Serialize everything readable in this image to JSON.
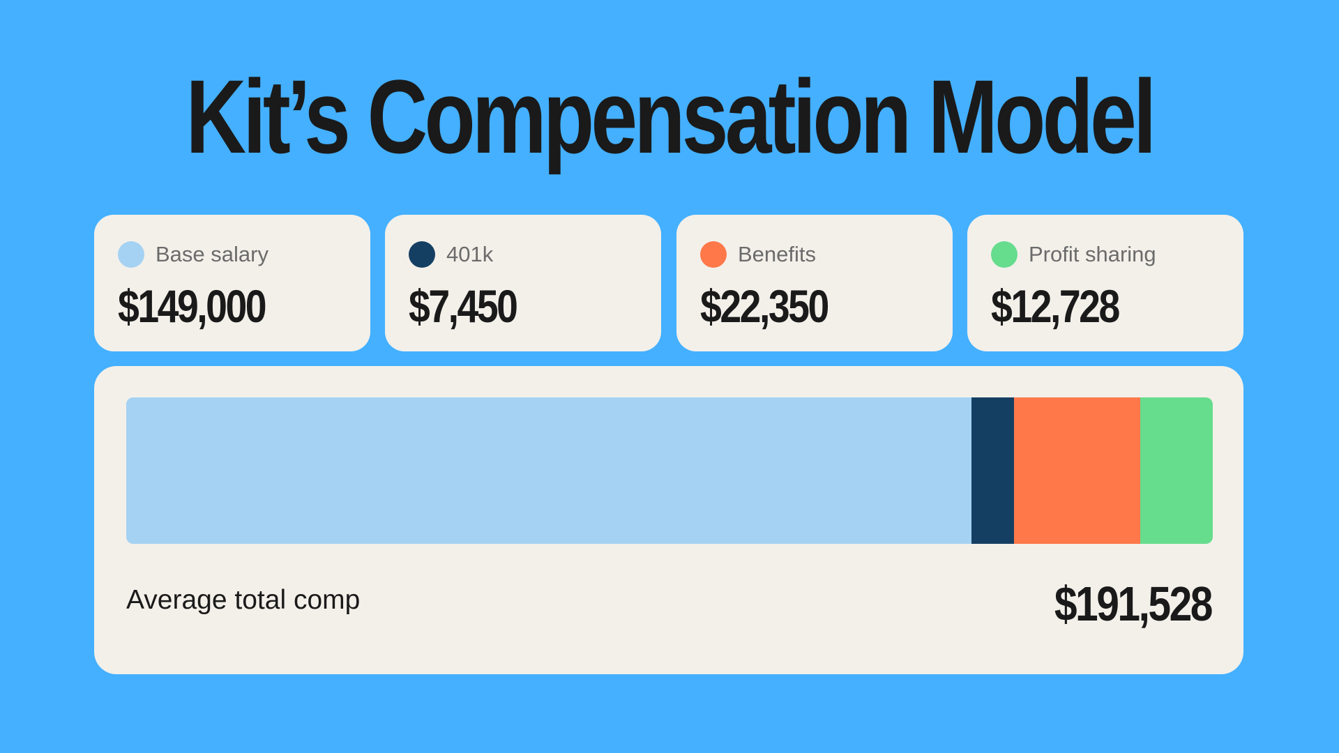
{
  "title": "Kit’s Compensation Model",
  "colors": {
    "background": "#44B0FF",
    "card": "#F3F0EA",
    "base_salary": "#A5D2F3",
    "401k": "#153F62",
    "benefits": "#FF7849",
    "profit_sharing": "#66DC8D"
  },
  "cards": [
    {
      "label": "Base salary",
      "value": "$149,000"
    },
    {
      "label": "401k",
      "value": "$7,450"
    },
    {
      "label": "Benefits",
      "value": "$22,350"
    },
    {
      "label": "Profit sharing",
      "value": "$12,728"
    }
  ],
  "total": {
    "label": "Average total comp",
    "value": "$191,528"
  },
  "chart_data": {
    "type": "bar",
    "orientation": "horizontal-stacked",
    "categories": [
      "Base salary",
      "401k",
      "Benefits",
      "Profit sharing"
    ],
    "values": [
      149000,
      7450,
      22350,
      12728
    ],
    "total": 191528
  }
}
